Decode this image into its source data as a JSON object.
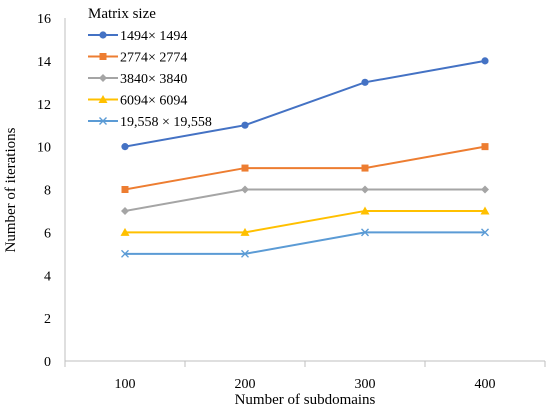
{
  "chart_data": {
    "type": "line",
    "title": "",
    "xlabel": "Number of subdomains",
    "ylabel": "Number of iterations",
    "categories": [
      "100",
      "200",
      "300",
      "400"
    ],
    "ylim": [
      0,
      16
    ],
    "yticks": [
      "0",
      "2",
      "4",
      "6",
      "8",
      "10",
      "12",
      "14",
      "16"
    ],
    "grid": false,
    "legend": {
      "title": "Matrix size",
      "position": "top-left"
    },
    "series": [
      {
        "name": "1494× 1494",
        "values": [
          10,
          11,
          13,
          14
        ],
        "color": "#4472C4",
        "marker": "circle"
      },
      {
        "name": "2774× 2774",
        "values": [
          8,
          9,
          9,
          10
        ],
        "color": "#ED7D31",
        "marker": "square"
      },
      {
        "name": "3840× 3840",
        "values": [
          7,
          8,
          8,
          8
        ],
        "color": "#A5A5A5",
        "marker": "diamond"
      },
      {
        "name": "6094× 6094",
        "values": [
          6,
          6,
          7,
          7
        ],
        "color": "#FFC000",
        "marker": "triangle"
      },
      {
        "name": "19,558 × 19,558",
        "values": [
          5,
          5,
          6,
          6
        ],
        "color": "#5B9BD5",
        "marker": "x"
      }
    ]
  }
}
